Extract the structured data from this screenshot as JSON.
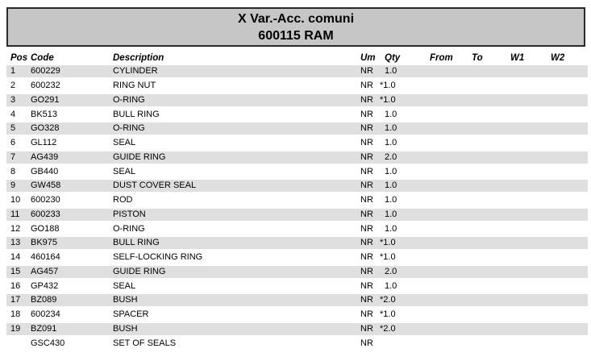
{
  "title": {
    "line1": "X Var.-Acc. comuni",
    "line2": "600115 RAM"
  },
  "table": {
    "columns": [
      "Pos",
      "Code",
      "Description",
      "Um",
      "Qty",
      "From",
      "To",
      "W1",
      "W2"
    ],
    "rows": [
      {
        "pos": "1",
        "code": "600229",
        "description": "CYLINDER",
        "um": "NR",
        "qty": "1.0",
        "from": "",
        "to": "",
        "w1": "",
        "w2": ""
      },
      {
        "pos": "2",
        "code": "600232",
        "description": "RING NUT",
        "um": "NR",
        "qty": "*1.0",
        "from": "",
        "to": "",
        "w1": "",
        "w2": ""
      },
      {
        "pos": "3",
        "code": "GO291",
        "description": "O-RING",
        "um": "NR",
        "qty": "*1.0",
        "from": "",
        "to": "",
        "w1": "",
        "w2": ""
      },
      {
        "pos": "4",
        "code": "BK513",
        "description": "BULL RING",
        "um": "NR",
        "qty": "1.0",
        "from": "",
        "to": "",
        "w1": "",
        "w2": ""
      },
      {
        "pos": "5",
        "code": "GO328",
        "description": "O-RING",
        "um": "NR",
        "qty": "1.0",
        "from": "",
        "to": "",
        "w1": "",
        "w2": ""
      },
      {
        "pos": "6",
        "code": "GL112",
        "description": "SEAL",
        "um": "NR",
        "qty": "1.0",
        "from": "",
        "to": "",
        "w1": "",
        "w2": ""
      },
      {
        "pos": "7",
        "code": "AG439",
        "description": "GUIDE RING",
        "um": "NR",
        "qty": "2.0",
        "from": "",
        "to": "",
        "w1": "",
        "w2": ""
      },
      {
        "pos": "8",
        "code": "GB440",
        "description": "SEAL",
        "um": "NR",
        "qty": "1.0",
        "from": "",
        "to": "",
        "w1": "",
        "w2": ""
      },
      {
        "pos": "9",
        "code": "GW458",
        "description": "DUST COVER SEAL",
        "um": "NR",
        "qty": "1.0",
        "from": "",
        "to": "",
        "w1": "",
        "w2": ""
      },
      {
        "pos": "10",
        "code": "600230",
        "description": "ROD",
        "um": "NR",
        "qty": "1.0",
        "from": "",
        "to": "",
        "w1": "",
        "w2": ""
      },
      {
        "pos": "11",
        "code": "600233",
        "description": "PISTON",
        "um": "NR",
        "qty": "1.0",
        "from": "",
        "to": "",
        "w1": "",
        "w2": ""
      },
      {
        "pos": "12",
        "code": "GO188",
        "description": "O-RING",
        "um": "NR",
        "qty": "1.0",
        "from": "",
        "to": "",
        "w1": "",
        "w2": ""
      },
      {
        "pos": "13",
        "code": "BK975",
        "description": "BULL RING",
        "um": "NR",
        "qty": "*1.0",
        "from": "",
        "to": "",
        "w1": "",
        "w2": ""
      },
      {
        "pos": "14",
        "code": "460164",
        "description": "SELF-LOCKING RING",
        "um": "NR",
        "qty": "*1.0",
        "from": "",
        "to": "",
        "w1": "",
        "w2": ""
      },
      {
        "pos": "15",
        "code": "AG457",
        "description": "GUIDE RING",
        "um": "NR",
        "qty": "2.0",
        "from": "",
        "to": "",
        "w1": "",
        "w2": ""
      },
      {
        "pos": "16",
        "code": "GP432",
        "description": "SEAL",
        "um": "NR",
        "qty": "1.0",
        "from": "",
        "to": "",
        "w1": "",
        "w2": ""
      },
      {
        "pos": "17",
        "code": "BZ089",
        "description": "BUSH",
        "um": "NR",
        "qty": "*2.0",
        "from": "",
        "to": "",
        "w1": "",
        "w2": ""
      },
      {
        "pos": "18",
        "code": "600234",
        "description": "SPACER",
        "um": "NR",
        "qty": "*1.0",
        "from": "",
        "to": "",
        "w1": "",
        "w2": ""
      },
      {
        "pos": "19",
        "code": "BZ091",
        "description": "BUSH",
        "um": "NR",
        "qty": "*2.0",
        "from": "",
        "to": "",
        "w1": "",
        "w2": ""
      },
      {
        "pos": "",
        "code": "GSC430",
        "description": "SET OF SEALS",
        "um": "NR",
        "qty": "",
        "from": "",
        "to": "",
        "w1": "",
        "w2": ""
      }
    ]
  },
  "colors": {
    "title_bg": "#c6c6c6",
    "stripe": "#dfdfdf",
    "border": "#2a2a2a"
  }
}
